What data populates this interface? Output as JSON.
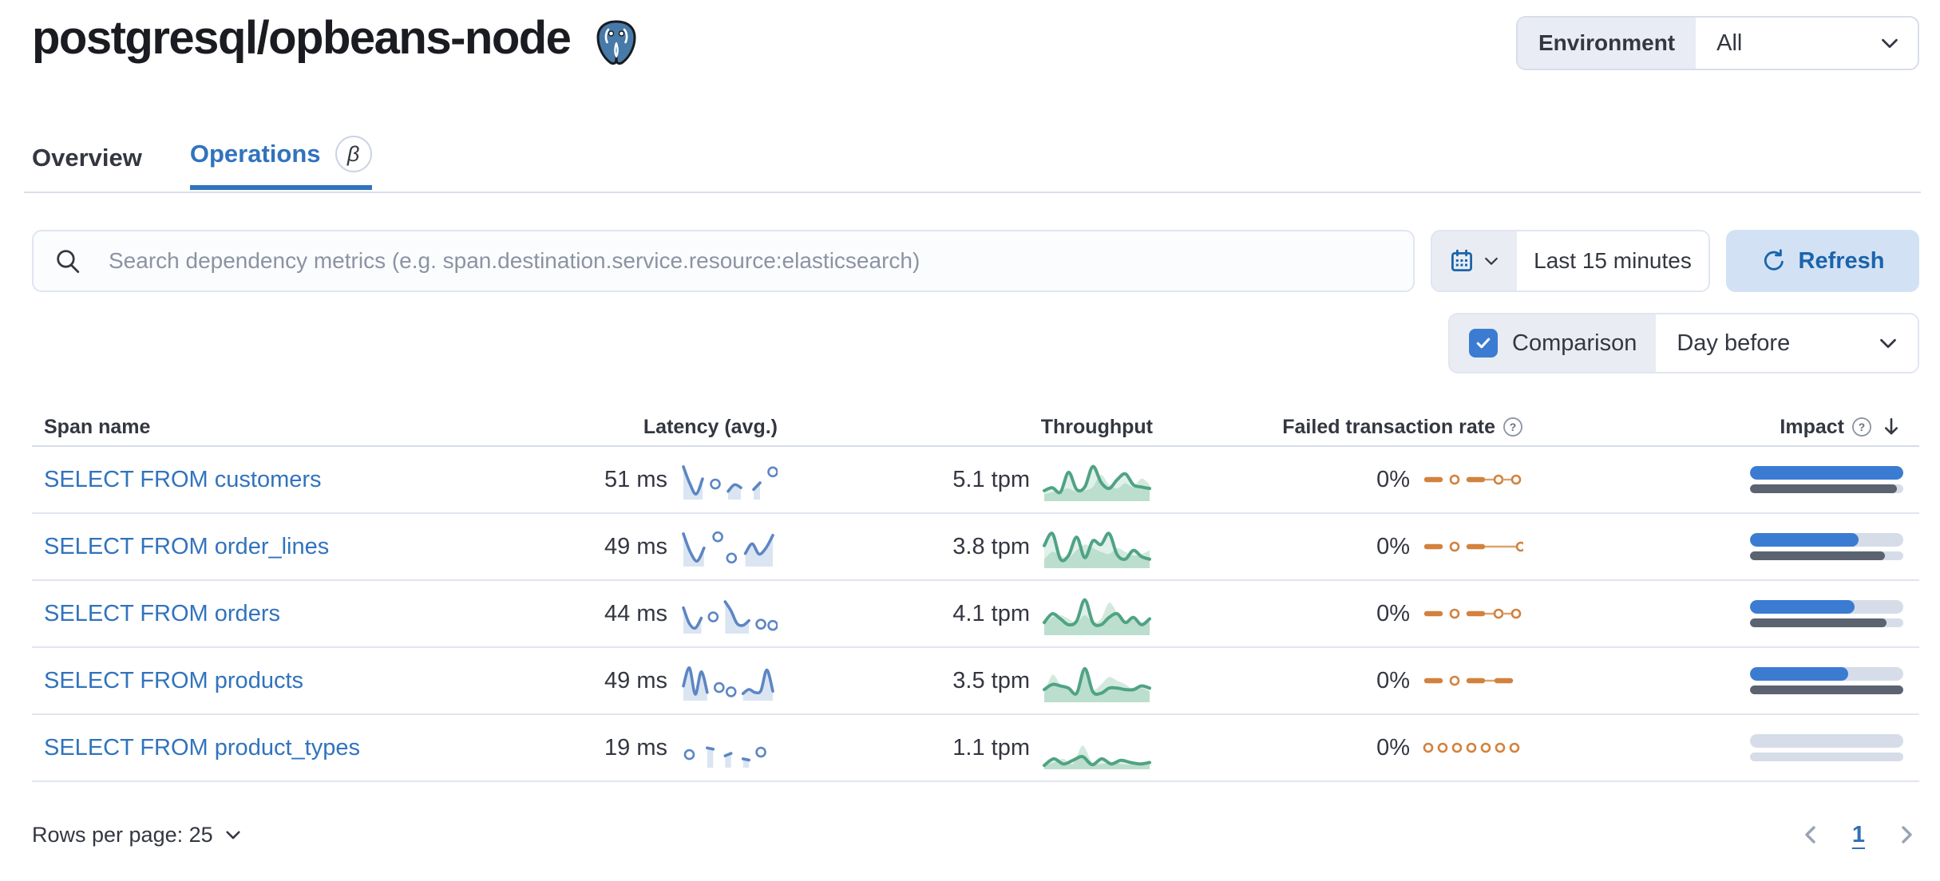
{
  "page": {
    "title": "postgresql/opbeans-node"
  },
  "environment": {
    "label": "Environment",
    "value": "All"
  },
  "tabs": [
    {
      "label": "Overview",
      "active": false
    },
    {
      "label": "Operations",
      "active": true,
      "beta": "β"
    }
  ],
  "search": {
    "placeholder": "Search dependency metrics (e.g. span.destination.service.resource:elasticsearch)"
  },
  "time": {
    "range": "Last 15 minutes",
    "refresh_label": "Refresh"
  },
  "comparison": {
    "label": "Comparison",
    "value": "Day before",
    "checked": true
  },
  "table": {
    "columns": [
      "Span name",
      "Latency (avg.)",
      "Throughput",
      "Failed transaction rate",
      "Impact"
    ],
    "rows": [
      {
        "span_name": "SELECT FROM customers",
        "latency": "51 ms",
        "throughput": "5.1 tpm",
        "failed_rate": "0%",
        "latency_spark": [
          95,
          40,
          5,
          55,
          null,
          38,
          null,
          14,
          36,
          26,
          null,
          20,
          42,
          null,
          78
        ],
        "throughput_spark": {
          "current": [
            22,
            30,
            18,
            72,
            25,
            32,
            88,
            45,
            28,
            52,
            68,
            38,
            32,
            28
          ],
          "previous": [
            12,
            18,
            22,
            28,
            18,
            22,
            32,
            65,
            38,
            28,
            42,
            32,
            55,
            38
          ]
        },
        "failed_spark": [
          "dash",
          "dot",
          "dash",
          "cdot",
          "cdot"
        ],
        "impact": {
          "current": 100,
          "previous": 96
        }
      },
      {
        "span_name": "SELECT FROM order_lines",
        "latency": "49 ms",
        "throughput": "3.8 tpm",
        "failed_rate": "0%",
        "latency_spark": [
          95,
          35,
          5,
          48,
          null,
          85,
          null,
          15,
          null,
          30,
          62,
          28,
          48,
          90
        ],
        "throughput_spark": {
          "current": [
            55,
            88,
            18,
            28,
            78,
            22,
            68,
            58,
            88,
            30,
            18,
            42,
            25,
            18
          ],
          "previous": [
            18,
            38,
            28,
            22,
            42,
            58,
            48,
            38,
            32,
            48,
            38,
            28,
            32,
            42
          ]
        },
        "failed_spark": [
          "dash",
          "dot",
          "dash",
          "ldot"
        ],
        "impact": {
          "current": 71,
          "previous": 88
        }
      },
      {
        "span_name": "SELECT FROM orders",
        "latency": "44 ms",
        "throughput": "4.1 tpm",
        "failed_rate": "0%",
        "latency_spark": [
          72,
          20,
          5,
          38,
          null,
          42,
          null,
          92,
          62,
          20,
          14,
          30,
          null,
          18,
          null,
          14
        ],
        "throughput_spark": {
          "current": [
            28,
            52,
            38,
            22,
            32,
            90,
            28,
            22,
            42,
            52,
            28,
            42,
            22,
            38
          ],
          "previous": [
            22,
            42,
            48,
            38,
            28,
            48,
            28,
            38,
            82,
            55,
            32,
            38,
            28,
            32
          ]
        },
        "failed_spark": [
          "dash",
          "dot",
          "dash",
          "cdot",
          "cdot"
        ],
        "impact": {
          "current": 68,
          "previous": 89
        }
      },
      {
        "span_name": "SELECT FROM products",
        "latency": "49 ms",
        "throughput": "3.5 tpm",
        "failed_rate": "0%",
        "latency_spark": [
          35,
          95,
          8,
          82,
          14,
          null,
          30,
          null,
          16,
          null,
          10,
          24,
          14,
          20,
          88,
          18
        ],
        "throughput_spark": {
          "current": [
            28,
            42,
            38,
            32,
            18,
            85,
            22,
            18,
            32,
            32,
            28,
            28,
            38,
            32
          ],
          "previous": [
            18,
            68,
            42,
            28,
            22,
            78,
            28,
            42,
            62,
            52,
            42,
            28,
            32,
            22
          ]
        },
        "failed_spark": [
          "dash",
          "dot",
          "dash",
          "cdash"
        ],
        "impact": {
          "current": 64,
          "previous": 100
        }
      },
      {
        "span_name": "SELECT FROM product_types",
        "latency": "19 ms",
        "throughput": "1.1 tpm",
        "failed_rate": "0%",
        "latency_spark": [
          null,
          30,
          null,
          null,
          52,
          48,
          null,
          26,
          34,
          null,
          16,
          12,
          null,
          38,
          null,
          null
        ],
        "throughput_spark": {
          "current": [
            4,
            22,
            8,
            18,
            28,
            6,
            22,
            8,
            18,
            12,
            8,
            12
          ],
          "previous": [
            4,
            12,
            22,
            8,
            58,
            12,
            8,
            12,
            8,
            6,
            10,
            6
          ]
        },
        "failed_spark": [
          "dot",
          "dot",
          "dot",
          "dot",
          "dot",
          "dot",
          "dot"
        ],
        "impact": {
          "current": 0,
          "previous": 0
        }
      }
    ]
  },
  "footer": {
    "rows_per_page": "Rows per page: 25",
    "page": "1"
  },
  "colors": {
    "primary_blue": "#3173bd",
    "latency_line": "#5c86c3",
    "latency_fill": "#dbe5f2",
    "throughput_line": "#4fa385",
    "throughput_prev_fill": "#d3e9de",
    "throughput_cur_fill": "rgba(84,170,140,0.18)",
    "failed_orange": "#d2823e",
    "failed_connector": "#dba36b",
    "impact_bar": "#3b7cd2",
    "impact_bar_previous": "#5b6370",
    "impact_track": "#d6dde8",
    "refresh_bg": "#d2e2f4",
    "refresh_text": "#1b64ab",
    "control_bg": "#e9ecf3",
    "border": "#d6dce8"
  }
}
